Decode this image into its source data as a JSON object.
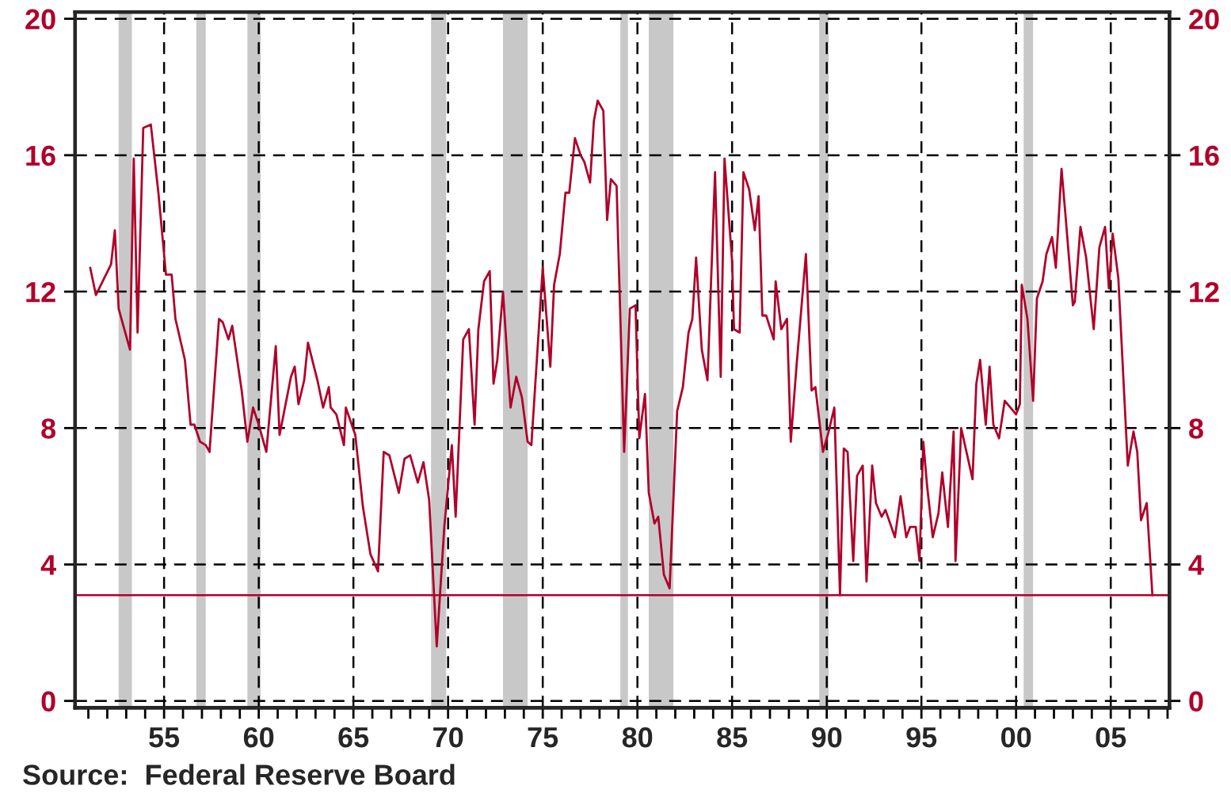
{
  "chart_data": {
    "type": "line",
    "x": [
      1951.1,
      1951.4,
      1952.2,
      1952.4,
      1952.6,
      1953.2,
      1953.4,
      1953.6,
      1953.9,
      1954.3,
      1954.7,
      1955.1,
      1955.4,
      1955.6,
      1956.1,
      1956.4,
      1956.6,
      1956.9,
      1957.2,
      1957.4,
      1957.9,
      1958.1,
      1958.4,
      1958.6,
      1959.1,
      1959.4,
      1959.7,
      1960.0,
      1960.4,
      1960.9,
      1961.1,
      1961.7,
      1961.9,
      1962.1,
      1962.4,
      1962.6,
      1963.1,
      1963.4,
      1963.7,
      1963.8,
      1964.1,
      1964.5,
      1964.6,
      1965.1,
      1965.5,
      1965.9,
      1966.3,
      1966.6,
      1966.9,
      1967.4,
      1967.7,
      1968.0,
      1968.4,
      1968.7,
      1969.0,
      1969.4,
      1969.8,
      1970.2,
      1970.4,
      1970.8,
      1971.1,
      1971.4,
      1971.6,
      1971.9,
      1972.2,
      1972.4,
      1972.6,
      1972.9,
      1973.3,
      1973.6,
      1973.9,
      1974.2,
      1974.4,
      1975.0,
      1975.4,
      1975.6,
      1975.9,
      1976.2,
      1976.4,
      1976.7,
      1977.0,
      1977.2,
      1977.5,
      1977.7,
      1977.9,
      1978.2,
      1978.4,
      1978.6,
      1978.9,
      1979.3,
      1979.6,
      1979.9,
      1980.1,
      1980.4,
      1980.6,
      1980.9,
      1981.1,
      1981.4,
      1981.7,
      1982.1,
      1982.4,
      1982.7,
      1982.9,
      1983.1,
      1983.4,
      1983.7,
      1984.1,
      1984.4,
      1984.6,
      1985.0,
      1985.1,
      1985.4,
      1985.6,
      1985.9,
      1986.2,
      1986.4,
      1986.6,
      1986.8,
      1987.2,
      1987.3,
      1987.6,
      1987.9,
      1988.1,
      1988.4,
      1988.9,
      1989.2,
      1989.4,
      1989.8,
      1990.1,
      1990.4,
      1990.7,
      1990.9,
      1991.1,
      1991.4,
      1991.6,
      1991.9,
      1992.1,
      1992.4,
      1992.6,
      1992.9,
      1993.1,
      1993.6,
      1993.9,
      1994.2,
      1994.4,
      1994.7,
      1994.9,
      1995.1,
      1995.3,
      1995.6,
      1995.9,
      1996.1,
      1996.4,
      1996.7,
      1996.8,
      1997.1,
      1997.7,
      1997.9,
      1998.1,
      1998.4,
      1998.6,
      1998.8,
      1999.1,
      1999.4,
      1999.7,
      2000.0,
      2000.2,
      2000.3,
      2000.6,
      2000.9,
      2001.1,
      2001.4,
      2001.6,
      2001.9,
      2002.1,
      2002.4,
      2002.6,
      2003.0,
      2003.1,
      2003.4,
      2003.7,
      2004.1,
      2004.4,
      2004.7,
      2004.9,
      2005.1,
      2005.4,
      2005.9,
      2006.2,
      2006.4,
      2006.6,
      2006.9,
      2007.2
    ],
    "series": [
      {
        "color": "#b0002a",
        "values": [
          12.7,
          11.9,
          12.8,
          13.8,
          11.5,
          10.3,
          15.9,
          10.8,
          16.8,
          16.9,
          14.9,
          12.5,
          12.5,
          11.2,
          10.0,
          8.1,
          8.1,
          7.6,
          7.5,
          7.3,
          11.2,
          11.1,
          10.6,
          11.0,
          9.1,
          7.6,
          8.6,
          8.1,
          7.3,
          10.4,
          7.8,
          9.5,
          9.8,
          8.7,
          9.4,
          10.5,
          9.4,
          8.6,
          9.2,
          8.6,
          8.4,
          7.5,
          8.6,
          7.8,
          5.7,
          4.3,
          3.8,
          7.3,
          7.2,
          6.1,
          7.1,
          7.2,
          6.4,
          7.0,
          5.9,
          1.6,
          5.1,
          7.5,
          5.4,
          10.6,
          10.9,
          8.1,
          10.9,
          12.3,
          12.6,
          9.3,
          10.0,
          12.0,
          8.6,
          9.5,
          8.9,
          7.6,
          7.5,
          12.7,
          9.8,
          12.2,
          13.1,
          14.9,
          14.9,
          16.5,
          16.0,
          15.8,
          15.2,
          17.0,
          17.6,
          17.3,
          14.1,
          15.3,
          15.1,
          7.3,
          11.5,
          11.6,
          7.7,
          9.0,
          6.1,
          5.2,
          5.4,
          3.7,
          3.3,
          8.5,
          9.2,
          10.8,
          11.2,
          13.0,
          10.3,
          9.4,
          15.5,
          9.5,
          15.9,
          12.9,
          10.9,
          10.8,
          15.5,
          15.0,
          13.8,
          14.8,
          11.3,
          11.3,
          10.6,
          12.3,
          10.9,
          11.2,
          7.6,
          9.8,
          13.1,
          9.1,
          9.2,
          7.3,
          7.9,
          8.6,
          3.1,
          7.4,
          7.3,
          4.1,
          6.6,
          6.9,
          3.5,
          6.9,
          5.8,
          5.4,
          5.6,
          4.8,
          6.0,
          4.8,
          5.1,
          5.1,
          4.1,
          7.6,
          6.3,
          4.8,
          5.5,
          6.7,
          5.1,
          7.9,
          4.1,
          8.0,
          6.5,
          9.3,
          10.0,
          8.1,
          9.8,
          8.1,
          7.7,
          8.8,
          8.6,
          8.4,
          8.7,
          12.2,
          11.2,
          8.8,
          11.8,
          12.3,
          13.1,
          13.6,
          12.7,
          15.6,
          14.3,
          11.6,
          11.7,
          13.9,
          13.0,
          10.9,
          13.3,
          13.9,
          12.1,
          13.7,
          12.4,
          6.9,
          7.9,
          7.3,
          5.3,
          5.8,
          3.1
        ]
      }
    ],
    "xlim": [
      1950.3,
      2008.1
    ],
    "xticks": [
      {
        "value": 1951,
        "label": null
      },
      {
        "value": 1952,
        "label": null
      },
      {
        "value": 1953,
        "label": null
      },
      {
        "value": 1954,
        "label": null
      },
      {
        "value": 1955,
        "label": "55"
      },
      {
        "value": 1956,
        "label": null
      },
      {
        "value": 1957,
        "label": null
      },
      {
        "value": 1958,
        "label": null
      },
      {
        "value": 1959,
        "label": null
      },
      {
        "value": 1960,
        "label": "60"
      },
      {
        "value": 1961,
        "label": null
      },
      {
        "value": 1962,
        "label": null
      },
      {
        "value": 1963,
        "label": null
      },
      {
        "value": 1964,
        "label": null
      },
      {
        "value": 1965,
        "label": "65"
      },
      {
        "value": 1966,
        "label": null
      },
      {
        "value": 1967,
        "label": null
      },
      {
        "value": 1968,
        "label": null
      },
      {
        "value": 1969,
        "label": null
      },
      {
        "value": 1970,
        "label": "70"
      },
      {
        "value": 1971,
        "label": null
      },
      {
        "value": 1972,
        "label": null
      },
      {
        "value": 1973,
        "label": null
      },
      {
        "value": 1974,
        "label": null
      },
      {
        "value": 1975,
        "label": "75"
      },
      {
        "value": 1976,
        "label": null
      },
      {
        "value": 1977,
        "label": null
      },
      {
        "value": 1978,
        "label": null
      },
      {
        "value": 1979,
        "label": null
      },
      {
        "value": 1980,
        "label": "80"
      },
      {
        "value": 1981,
        "label": null
      },
      {
        "value": 1982,
        "label": null
      },
      {
        "value": 1983,
        "label": null
      },
      {
        "value": 1984,
        "label": null
      },
      {
        "value": 1985,
        "label": "85"
      },
      {
        "value": 1986,
        "label": null
      },
      {
        "value": 1987,
        "label": null
      },
      {
        "value": 1988,
        "label": null
      },
      {
        "value": 1989,
        "label": null
      },
      {
        "value": 1990,
        "label": "90"
      },
      {
        "value": 1991,
        "label": null
      },
      {
        "value": 1992,
        "label": null
      },
      {
        "value": 1993,
        "label": null
      },
      {
        "value": 1994,
        "label": null
      },
      {
        "value": 1995,
        "label": "95"
      },
      {
        "value": 1996,
        "label": null
      },
      {
        "value": 1997,
        "label": null
      },
      {
        "value": 1998,
        "label": null
      },
      {
        "value": 1999,
        "label": null
      },
      {
        "value": 2000,
        "label": "00"
      },
      {
        "value": 2001,
        "label": null
      },
      {
        "value": 2002,
        "label": null
      },
      {
        "value": 2003,
        "label": null
      },
      {
        "value": 2004,
        "label": null
      },
      {
        "value": 2005,
        "label": "05"
      },
      {
        "value": 2006,
        "label": null
      },
      {
        "value": 2007,
        "label": null
      },
      {
        "value": 2008,
        "label": null
      }
    ],
    "ylim": [
      -0.2,
      20.2
    ],
    "yticks": [
      0,
      4,
      8,
      12,
      16,
      20
    ],
    "y2lim": [
      -0.2,
      20.2
    ],
    "y2ticks": [
      0,
      4,
      8,
      12,
      16,
      20
    ],
    "grid": true,
    "line_style": "solid",
    "marker": "none",
    "ref_lines": [
      {
        "axis": "y",
        "value": 3.1,
        "color": "#b0002a",
        "line_style": "solid"
      }
    ],
    "bands": [
      {
        "axis": "x",
        "from": 1952.6,
        "to": 1953.3,
        "color": "#c8c8c8"
      },
      {
        "axis": "x",
        "from": 1956.7,
        "to": 1957.2,
        "color": "#c8c8c8"
      },
      {
        "axis": "x",
        "from": 1959.4,
        "to": 1960.1,
        "color": "#c8c8c8"
      },
      {
        "axis": "x",
        "from": 1969.1,
        "to": 1969.9,
        "color": "#c8c8c8"
      },
      {
        "axis": "x",
        "from": 1972.9,
        "to": 1974.2,
        "color": "#c8c8c8"
      },
      {
        "axis": "x",
        "from": 1979.1,
        "to": 1979.5,
        "color": "#c8c8c8"
      },
      {
        "axis": "x",
        "from": 1980.6,
        "to": 1981.9,
        "color": "#c8c8c8"
      },
      {
        "axis": "x",
        "from": 1989.6,
        "to": 1990.1,
        "color": "#c8c8c8"
      },
      {
        "axis": "x",
        "from": 2000.4,
        "to": 2000.9,
        "color": "#c8c8c8"
      }
    ],
    "annotations": [
      "Source:  Federal Reserve Board"
    ]
  }
}
